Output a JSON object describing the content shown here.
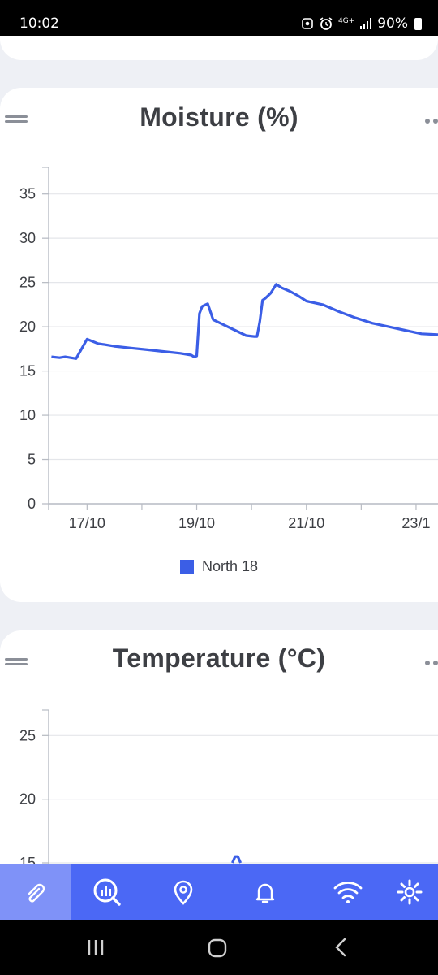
{
  "status_bar": {
    "time": "10:02",
    "network": "4G+",
    "battery": "90%"
  },
  "charts": [
    {
      "id": "moisture",
      "title": "Moisture (%)",
      "legend": "North 18"
    },
    {
      "id": "temperature",
      "title": "Temperature (°C)"
    }
  ],
  "chart_data": [
    {
      "type": "line",
      "title": "Moisture (%)",
      "xlabel": "",
      "ylabel": "",
      "x_tick_labels": [
        "17/10",
        "19/10",
        "21/10",
        "23/1"
      ],
      "y_ticks": [
        0,
        5,
        10,
        15,
        20,
        25,
        30,
        35
      ],
      "ylim": [
        0,
        38
      ],
      "xlim_days": [
        16.3,
        23.4
      ],
      "grid": true,
      "legend_position": "bottom",
      "series": [
        {
          "name": "North 18",
          "color": "#3b5ee6",
          "x": [
            16.35,
            16.5,
            16.6,
            16.8,
            16.9,
            17.0,
            17.2,
            17.5,
            17.8,
            18.1,
            18.4,
            18.7,
            18.9,
            18.95,
            19.0,
            19.05,
            19.1,
            19.2,
            19.3,
            19.5,
            19.7,
            19.9,
            20.05,
            20.1,
            20.15,
            20.2,
            20.25,
            20.35,
            20.45,
            20.55,
            20.7,
            20.85,
            21.0,
            21.3,
            21.6,
            21.9,
            22.2,
            22.5,
            22.8,
            23.1,
            23.4
          ],
          "y": [
            16.6,
            16.5,
            16.6,
            16.4,
            17.5,
            18.6,
            18.1,
            17.8,
            17.6,
            17.4,
            17.2,
            17.0,
            16.8,
            16.6,
            16.7,
            21.5,
            22.3,
            22.6,
            20.8,
            20.2,
            19.6,
            19.0,
            18.9,
            18.9,
            20.6,
            23.0,
            23.2,
            23.8,
            24.8,
            24.4,
            24.0,
            23.5,
            22.9,
            22.5,
            21.7,
            21.0,
            20.4,
            20.0,
            19.6,
            19.2,
            19.1
          ]
        }
      ]
    },
    {
      "type": "line",
      "title": "Temperature (°C)",
      "xlabel": "",
      "ylabel": "",
      "y_ticks": [
        15,
        20,
        25
      ],
      "ylim": [
        15,
        27
      ],
      "grid": true,
      "series": [
        {
          "color": "#3b5ee6",
          "x": [
            19.65,
            19.7,
            19.75,
            19.8
          ],
          "y": [
            15.0,
            15.5,
            15.5,
            15.0
          ]
        }
      ]
    }
  ],
  "bottom_nav": {
    "items": [
      {
        "icon": "paperclip-icon"
      },
      {
        "icon": "analytics-search-icon"
      },
      {
        "icon": "location-pin-icon"
      },
      {
        "icon": "bell-icon"
      },
      {
        "icon": "wifi-icon"
      },
      {
        "icon": "gear-icon"
      }
    ],
    "active_index": 0,
    "color": "#4b68f5",
    "active_color": "#7f92f8"
  },
  "colors": {
    "line": "#3b5ee6",
    "background": "#eef0f5",
    "card": "#ffffff",
    "nav": "#4b68f5"
  }
}
